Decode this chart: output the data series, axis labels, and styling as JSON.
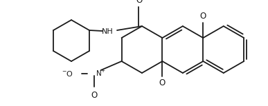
{
  "bg_color": "#ffffff",
  "line_color": "#1a1a1a",
  "lw": 1.3,
  "dbo": 0.016,
  "fig_width": 3.87,
  "fig_height": 1.54,
  "xlim": [
    0,
    387
  ],
  "ylim": [
    0,
    154
  ]
}
